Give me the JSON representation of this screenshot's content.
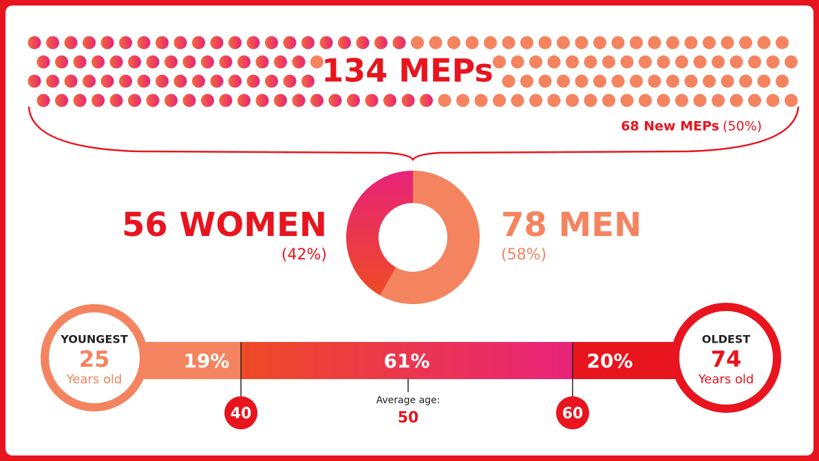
{
  "headline": "134 MEPs",
  "new_meps": {
    "label": "68 New MEPs",
    "share": "(50%)"
  },
  "gender": [
    {
      "label": "56 WOMEN",
      "share": "(42%)",
      "value": 56
    },
    {
      "label": "78 MEN",
      "share": "(58%)",
      "value": 78
    }
  ],
  "age": {
    "youngest": {
      "title": "YOUNGEST",
      "age": "25",
      "unit": "Years old"
    },
    "oldest": {
      "title": "OLDEST",
      "age": "74",
      "unit": "Years old"
    },
    "bands": [
      {
        "label": "19%",
        "value": 19
      },
      {
        "label": "61%",
        "value": 61
      },
      {
        "label": "20%",
        "value": 20
      }
    ],
    "bounds": [
      "40",
      "60"
    ],
    "average": {
      "label": "Average age:",
      "value": "50"
    }
  }
}
